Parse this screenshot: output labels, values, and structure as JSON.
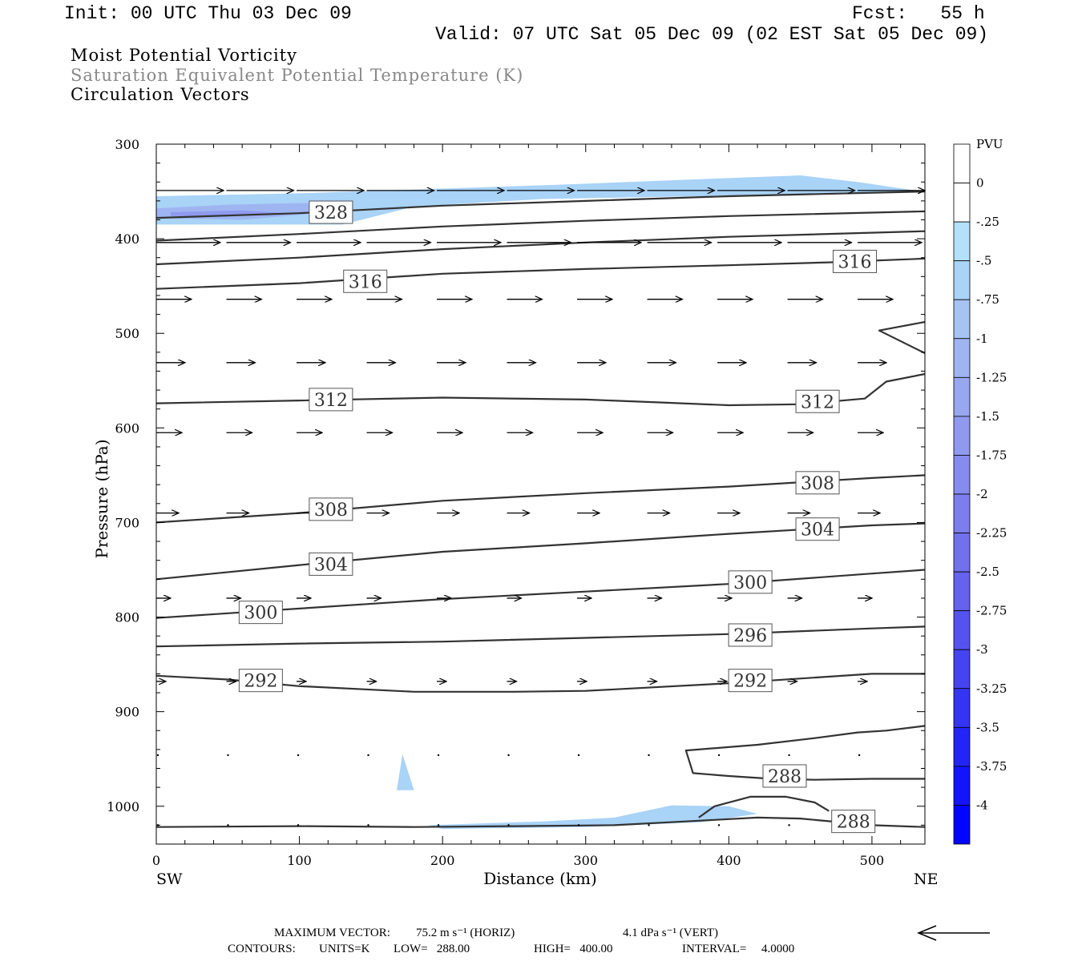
{
  "header": {
    "init": "Init: 00 UTC Thu 03 Dec 09",
    "fcst": "Fcst:   55 h",
    "valid": "Valid: 07 UTC Sat 05 Dec 09 (02 EST Sat 05 Dec 09)"
  },
  "titles": {
    "line1": "Moist Potential Vorticity",
    "line2": "Saturation Equivalent Potential Temperature (K)",
    "line3": "Circulation Vectors"
  },
  "footer": {
    "max_vector_label": "MAXIMUM VECTOR:",
    "max_vector_horiz": "75.2 m s⁻¹ (HORIZ)",
    "max_vector_vert": "4.1 dPa s⁻¹ (VERT)",
    "contours_label": "CONTOURS:",
    "units": "UNITS=K",
    "low": "LOW=   288.00",
    "high": "HIGH=   400.00",
    "interval": "INTERVAL=     4.0000"
  },
  "colors": {
    "contour": "#333333",
    "axis": "#000000",
    "pv_fill_light": "#b3e1fa",
    "pv_fill_mid": "#a6c3f2",
    "pv_fill_dark": "#8f9ff0"
  },
  "chart_data": {
    "type": "cross-section",
    "xlabel": "Distance (km)",
    "ylabel": "Pressure (hPa)",
    "xlim": [
      0,
      537
    ],
    "ylim": [
      1040,
      300
    ],
    "x_ticks": [
      0,
      100,
      200,
      300,
      400,
      500
    ],
    "y_ticks": [
      300,
      400,
      500,
      600,
      700,
      800,
      900,
      1000
    ],
    "end_labels": {
      "left": "SW",
      "right": "NE"
    },
    "colorbar": {
      "unit_label": "PVU",
      "levels": [
        "0",
        "-.25",
        "-.5",
        "-.75",
        "-1",
        "-1.25",
        "-1.5",
        "-1.75",
        "-2",
        "-2.25",
        "-2.5",
        "-2.75",
        "-3",
        "-3.25",
        "-3.5",
        "-3.75",
        "-4"
      ],
      "colors": [
        "#ffffff",
        "#ffffff",
        "#b3e1fa",
        "#a9d3f7",
        "#a6c3f2",
        "#9fb5f1",
        "#97a7f0",
        "#8f9aef",
        "#868cee",
        "#7c7eed",
        "#7170ed",
        "#6462ee",
        "#5553ef",
        "#4544f1",
        "#3434f4",
        "#2324f7",
        "#1214fa",
        "#0005fd"
      ]
    },
    "contours": [
      {
        "label": "328",
        "points": [
          [
            0,
            378
          ],
          [
            100,
            373
          ],
          [
            200,
            365
          ],
          [
            300,
            360
          ],
          [
            400,
            355
          ],
          [
            537,
            350
          ]
        ]
      },
      {
        "label": "",
        "points": [
          [
            0,
            402
          ],
          [
            100,
            395
          ],
          [
            200,
            387
          ],
          [
            300,
            381
          ],
          [
            400,
            376
          ],
          [
            537,
            371
          ]
        ]
      },
      {
        "label": "",
        "points": [
          [
            0,
            427
          ],
          [
            100,
            420
          ],
          [
            200,
            411
          ],
          [
            300,
            404
          ],
          [
            400,
            398
          ],
          [
            537,
            392
          ]
        ]
      },
      {
        "label": "316",
        "points": [
          [
            0,
            453
          ],
          [
            100,
            447
          ],
          [
            200,
            437
          ],
          [
            300,
            432
          ],
          [
            400,
            428
          ],
          [
            470,
            425
          ],
          [
            537,
            421
          ]
        ]
      },
      {
        "label": "312",
        "points": [
          [
            0,
            574
          ],
          [
            100,
            571
          ],
          [
            200,
            568
          ],
          [
            300,
            570
          ],
          [
            350,
            573
          ],
          [
            400,
            576
          ],
          [
            450,
            575
          ],
          [
            495,
            569
          ],
          [
            510,
            551
          ],
          [
            537,
            543
          ]
        ]
      },
      {
        "label": "",
        "points": [
          [
            537,
            488
          ],
          [
            505,
            497
          ],
          [
            537,
            521
          ]
        ]
      },
      {
        "label": "308",
        "points": [
          [
            0,
            700
          ],
          [
            100,
            690
          ],
          [
            200,
            677
          ],
          [
            300,
            669
          ],
          [
            400,
            662
          ],
          [
            500,
            653
          ],
          [
            537,
            650
          ]
        ]
      },
      {
        "label": "304",
        "points": [
          [
            0,
            760
          ],
          [
            100,
            745
          ],
          [
            200,
            731
          ],
          [
            300,
            722
          ],
          [
            400,
            712
          ],
          [
            500,
            703
          ],
          [
            537,
            701
          ]
        ]
      },
      {
        "label": "300",
        "points": [
          [
            0,
            801
          ],
          [
            100,
            791
          ],
          [
            200,
            781
          ],
          [
            300,
            773
          ],
          [
            400,
            765
          ],
          [
            500,
            754
          ],
          [
            537,
            750
          ]
        ]
      },
      {
        "label": "296",
        "points": [
          [
            0,
            831
          ],
          [
            100,
            828
          ],
          [
            200,
            826
          ],
          [
            300,
            822
          ],
          [
            400,
            818
          ],
          [
            500,
            812
          ],
          [
            537,
            810
          ]
        ]
      },
      {
        "label": "292",
        "points": [
          [
            0,
            862
          ],
          [
            50,
            866
          ],
          [
            100,
            873
          ],
          [
            180,
            879
          ],
          [
            250,
            879
          ],
          [
            300,
            878
          ],
          [
            400,
            870
          ],
          [
            500,
            860
          ],
          [
            537,
            860
          ]
        ]
      },
      {
        "label": "288",
        "points": [
          [
            537,
            915
          ],
          [
            510,
            920
          ],
          [
            490,
            922
          ],
          [
            460,
            928
          ],
          [
            420,
            935
          ],
          [
            370,
            941
          ],
          [
            375,
            965
          ],
          [
            400,
            968
          ],
          [
            430,
            971
          ],
          [
            460,
            972
          ],
          [
            500,
            971
          ],
          [
            537,
            971
          ]
        ]
      },
      {
        "label": "288",
        "points": [
          [
            0,
            1022
          ],
          [
            100,
            1021
          ],
          [
            180,
            1022
          ],
          [
            250,
            1021
          ],
          [
            320,
            1020
          ],
          [
            370,
            1016
          ],
          [
            420,
            1012
          ],
          [
            450,
            1013
          ],
          [
            500,
            1020
          ],
          [
            537,
            1022
          ]
        ]
      },
      {
        "label": "",
        "points": [
          [
            379,
            1012
          ],
          [
            390,
            1000
          ],
          [
            415,
            990
          ],
          [
            440,
            990
          ],
          [
            460,
            996
          ],
          [
            470,
            1005
          ]
        ]
      }
    ],
    "contour_label_positions": [
      {
        "text": "328",
        "x": 122,
        "p": 372
      },
      {
        "text": "316",
        "x": 146,
        "p": 445
      },
      {
        "text": "316",
        "x": 488,
        "p": 424
      },
      {
        "text": "312",
        "x": 122,
        "p": 570
      },
      {
        "text": "312",
        "x": 462,
        "p": 572
      },
      {
        "text": "308",
        "x": 462,
        "p": 658
      },
      {
        "text": "308",
        "x": 122,
        "p": 686
      },
      {
        "text": "304",
        "x": 462,
        "p": 707
      },
      {
        "text": "304",
        "x": 122,
        "p": 744
      },
      {
        "text": "300",
        "x": 415,
        "p": 763
      },
      {
        "text": "300",
        "x": 73,
        "p": 795
      },
      {
        "text": "296",
        "x": 415,
        "p": 819
      },
      {
        "text": "292",
        "x": 73,
        "p": 867
      },
      {
        "text": "292",
        "x": 415,
        "p": 867
      },
      {
        "text": "288",
        "x": 439,
        "p": 968
      },
      {
        "text": "288",
        "x": 487,
        "p": 1016
      }
    ],
    "pv_shading": [
      {
        "level": "-.5",
        "points": [
          [
            0,
            355
          ],
          [
            100,
            352
          ],
          [
            200,
            347
          ],
          [
            280,
            343
          ],
          [
            380,
            337
          ],
          [
            450,
            333
          ],
          [
            490,
            340
          ],
          [
            535,
            350
          ],
          [
            380,
            355
          ],
          [
            270,
            358
          ],
          [
            180,
            366
          ],
          [
            130,
            385
          ],
          [
            0,
            385
          ]
        ]
      },
      {
        "level": "-1",
        "points": [
          [
            0,
            368
          ],
          [
            50,
            364
          ],
          [
            110,
            362
          ],
          [
            120,
            372
          ],
          [
            60,
            380
          ],
          [
            0,
            378
          ]
        ]
      },
      {
        "level": "-1.5",
        "points": [
          [
            10,
            372
          ],
          [
            60,
            370
          ],
          [
            90,
            373
          ],
          [
            50,
            376
          ],
          [
            10,
            376
          ]
        ]
      },
      {
        "level": "-.5",
        "points": [
          [
            170,
            985
          ],
          [
            180,
            980
          ],
          [
            270,
            1015
          ],
          [
            380,
            998
          ],
          [
            420,
            1008
          ],
          [
            360,
            1018
          ],
          [
            270,
            1020
          ],
          [
            190,
            1025
          ],
          [
            180,
            1021
          ],
          [
            190,
            1017
          ],
          [
            260,
            1018
          ],
          [
            200,
            1012
          ]
        ]
      },
      {
        "level": "-1",
        "points": [
          [
            330,
            1015
          ],
          [
            370,
            1010
          ],
          [
            390,
            1014
          ],
          [
            350,
            1018
          ]
        ]
      }
    ],
    "pv_shading_small": [
      {
        "level": "-.5",
        "points": [
          [
            168,
            983
          ],
          [
            172,
            945
          ],
          [
            180,
            983
          ]
        ]
      },
      {
        "level": "-.5",
        "points": [
          [
            190,
            1020
          ],
          [
            230,
            1018
          ],
          [
            270,
            1016
          ],
          [
            320,
            1012
          ],
          [
            360,
            999
          ],
          [
            400,
            1000
          ],
          [
            420,
            1008
          ],
          [
            380,
            1017
          ],
          [
            300,
            1022
          ],
          [
            200,
            1024
          ]
        ]
      }
    ],
    "vector_rows": [
      {
        "p": 349,
        "u": 42,
        "w": 0
      },
      {
        "p": 404,
        "u": 40,
        "w": 0
      },
      {
        "p": 464,
        "u": 22,
        "w": 0
      },
      {
        "p": 531,
        "u": 18,
        "w": 0
      },
      {
        "p": 605,
        "u": 16,
        "w": 0
      },
      {
        "p": 690,
        "u": 14,
        "w": 0
      },
      {
        "p": 780,
        "u": 9,
        "w": 0
      },
      {
        "p": 868,
        "u": 6,
        "w": 0
      },
      {
        "p": 946,
        "u": 1,
        "w": 0
      },
      {
        "p": 1020,
        "u": 1,
        "w": 0
      }
    ],
    "vector_x": [
      0,
      49,
      98,
      147,
      196,
      245,
      294,
      343,
      392,
      441,
      490
    ]
  }
}
